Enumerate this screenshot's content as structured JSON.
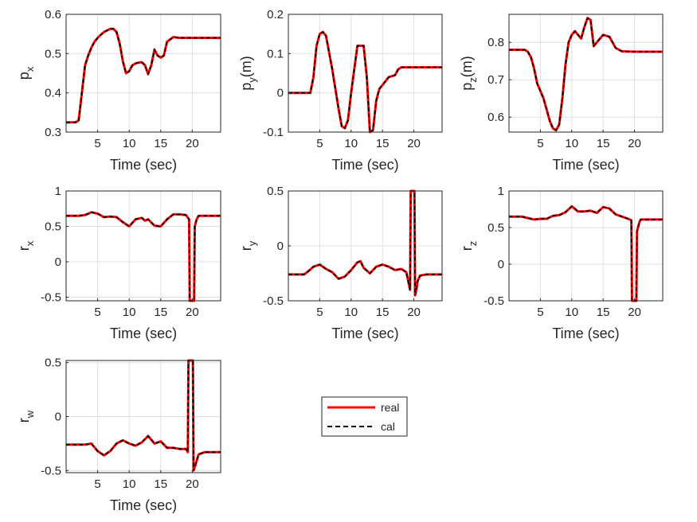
{
  "chart_data": [
    {
      "type": "line",
      "id": "px",
      "ylabel": {
        "base": "p",
        "sub": "x",
        "suffix": ""
      },
      "xlabel": "Time (sec)",
      "xlim": [
        0,
        24.5
      ],
      "ylim": [
        0.3,
        0.6
      ],
      "xticks": [
        5,
        10,
        15,
        20
      ],
      "yticks": [
        0.3,
        0.4,
        0.5,
        0.6
      ],
      "ytick_labels": [
        "0.3",
        "0.4",
        "0.5",
        "0.6"
      ],
      "series": [
        {
          "name": "real",
          "x": [
            0,
            1.5,
            2,
            2.5,
            3,
            3.5,
            4,
            4.5,
            5,
            5.5,
            6,
            7,
            7.5,
            8,
            8.5,
            9,
            9.5,
            10,
            10.5,
            11,
            11.5,
            12,
            12.5,
            13,
            13.5,
            14,
            14.5,
            15,
            15.5,
            16,
            17,
            18,
            20,
            24.5
          ],
          "y": [
            0.325,
            0.325,
            0.33,
            0.4,
            0.47,
            0.495,
            0.515,
            0.53,
            0.54,
            0.548,
            0.555,
            0.563,
            0.563,
            0.555,
            0.525,
            0.48,
            0.45,
            0.455,
            0.47,
            0.475,
            0.477,
            0.478,
            0.47,
            0.448,
            0.47,
            0.51,
            0.495,
            0.49,
            0.495,
            0.53,
            0.542,
            0.54,
            0.54,
            0.54
          ]
        }
      ]
    },
    {
      "type": "line",
      "id": "py",
      "ylabel": {
        "base": "p",
        "sub": "y",
        "suffix": "(m)"
      },
      "xlabel": "Time (sec)",
      "xlim": [
        0,
        24.5
      ],
      "ylim": [
        -0.1,
        0.2
      ],
      "xticks": [
        5,
        10,
        15,
        20
      ],
      "yticks": [
        -0.1,
        0,
        0.1,
        0.2
      ],
      "ytick_labels": [
        "-0.1",
        "0",
        "0.1",
        "0.2"
      ],
      "series": [
        {
          "name": "real",
          "x": [
            0,
            2,
            3,
            3.5,
            4,
            4.5,
            5,
            5.5,
            6,
            7,
            8,
            8.5,
            9,
            9.5,
            10,
            11,
            12,
            12.5,
            13,
            13.5,
            14,
            14.5,
            15,
            16,
            17,
            17.5,
            18,
            20,
            24.5
          ],
          "y": [
            0,
            0,
            0,
            0,
            0.04,
            0.12,
            0.15,
            0.155,
            0.145,
            0.06,
            -0.04,
            -0.085,
            -0.09,
            -0.07,
            0,
            0.12,
            0.12,
            0.04,
            -0.1,
            -0.095,
            -0.02,
            0.01,
            0.02,
            0.04,
            0.045,
            0.06,
            0.065,
            0.065,
            0.065
          ]
        }
      ]
    },
    {
      "type": "line",
      "id": "pz",
      "ylabel": {
        "base": "p",
        "sub": "z",
        "suffix": "(m)"
      },
      "xlabel": "Time (sec)",
      "xlim": [
        0,
        24.5
      ],
      "ylim": [
        0.56,
        0.875
      ],
      "xticks": [
        5,
        10,
        15,
        20
      ],
      "yticks": [
        0.6,
        0.7,
        0.8
      ],
      "ytick_labels": [
        "0.6",
        "0.7",
        "0.8"
      ],
      "series": [
        {
          "name": "real",
          "x": [
            0,
            2.5,
            3,
            3.5,
            4,
            4.5,
            5,
            5.5,
            6,
            6.5,
            7,
            7.5,
            8,
            8.5,
            9,
            9.5,
            10,
            10.5,
            11,
            11.5,
            12,
            12.5,
            13,
            13.5,
            14,
            14.5,
            15,
            16,
            16.5,
            17,
            18,
            20,
            24.5
          ],
          "y": [
            0.78,
            0.78,
            0.775,
            0.76,
            0.73,
            0.69,
            0.67,
            0.65,
            0.62,
            0.59,
            0.57,
            0.565,
            0.58,
            0.65,
            0.74,
            0.8,
            0.82,
            0.83,
            0.82,
            0.81,
            0.84,
            0.865,
            0.86,
            0.79,
            0.8,
            0.81,
            0.82,
            0.815,
            0.8,
            0.785,
            0.776,
            0.775,
            0.775
          ]
        }
      ]
    },
    {
      "type": "line",
      "id": "rx",
      "ylabel": {
        "base": "r",
        "sub": "x",
        "suffix": ""
      },
      "xlabel": "Time (sec)",
      "xlim": [
        0,
        24.5
      ],
      "ylim": [
        -0.55,
        1.0
      ],
      "xticks": [
        5,
        10,
        15,
        20
      ],
      "yticks": [
        -0.5,
        0,
        0.5,
        1
      ],
      "ytick_labels": [
        "-0.5",
        "0",
        "0.5",
        "1"
      ],
      "series": [
        {
          "name": "real",
          "x": [
            0,
            2,
            3,
            4,
            5,
            6,
            7,
            8,
            9,
            10,
            11,
            12,
            12.5,
            13,
            14,
            15,
            16,
            17,
            18,
            19,
            19.5,
            19.6,
            20.3,
            20.4,
            20.7,
            21,
            22,
            24.5
          ],
          "y": [
            0.65,
            0.65,
            0.66,
            0.7,
            0.68,
            0.63,
            0.64,
            0.63,
            0.56,
            0.5,
            0.6,
            0.62,
            0.58,
            0.6,
            0.51,
            0.5,
            0.6,
            0.67,
            0.67,
            0.66,
            0.6,
            -0.55,
            -0.55,
            0.5,
            0.6,
            0.65,
            0.65,
            0.65
          ]
        }
      ]
    },
    {
      "type": "line",
      "id": "ry",
      "ylabel": {
        "base": "r",
        "sub": "y",
        "suffix": ""
      },
      "xlabel": "Time (sec)",
      "xlim": [
        0,
        24.5
      ],
      "ylim": [
        -0.5,
        0.5
      ],
      "xticks": [
        5,
        10,
        15,
        20
      ],
      "yticks": [
        -0.5,
        0,
        0.5
      ],
      "ytick_labels": [
        "-0.5",
        "0",
        "0.5"
      ],
      "series": [
        {
          "name": "real",
          "x": [
            0,
            2.5,
            3,
            4,
            5,
            6,
            7,
            8,
            9,
            10,
            11,
            11.5,
            12,
            13,
            14,
            15,
            16,
            17,
            18,
            18.8,
            19.4,
            19.5,
            20.1,
            20.2,
            20.4,
            20.6,
            21,
            22,
            24.5
          ],
          "y": [
            -0.26,
            -0.26,
            -0.24,
            -0.19,
            -0.17,
            -0.21,
            -0.24,
            -0.3,
            -0.28,
            -0.22,
            -0.15,
            -0.14,
            -0.2,
            -0.25,
            -0.19,
            -0.17,
            -0.19,
            -0.22,
            -0.21,
            -0.24,
            -0.4,
            0.5,
            0.5,
            -0.45,
            -0.4,
            -0.32,
            -0.27,
            -0.26,
            -0.26
          ]
        }
      ]
    },
    {
      "type": "line",
      "id": "rz",
      "ylabel": {
        "base": "r",
        "sub": "z",
        "suffix": ""
      },
      "xlabel": "Time (sec)",
      "xlim": [
        0,
        24.5
      ],
      "ylim": [
        -0.5,
        1.0
      ],
      "xticks": [
        5,
        10,
        15,
        20
      ],
      "yticks": [
        -0.5,
        0,
        0.5,
        1
      ],
      "ytick_labels": [
        "-0.5",
        "0",
        "0.5",
        "1"
      ],
      "series": [
        {
          "name": "real",
          "x": [
            0,
            2,
            3,
            4,
            5,
            6,
            7,
            8,
            9,
            10,
            11,
            12,
            13,
            14,
            15,
            16,
            17,
            18,
            19,
            19.5,
            19.6,
            20.3,
            20.4,
            20.8,
            21,
            22,
            24.5
          ],
          "y": [
            0.65,
            0.65,
            0.63,
            0.61,
            0.62,
            0.62,
            0.66,
            0.67,
            0.71,
            0.79,
            0.72,
            0.72,
            0.73,
            0.7,
            0.78,
            0.76,
            0.68,
            0.65,
            0.62,
            0.6,
            -0.5,
            -0.5,
            0.45,
            0.58,
            0.61,
            0.61,
            0.61
          ]
        }
      ]
    },
    {
      "type": "line",
      "id": "rw",
      "ylabel": {
        "base": "r",
        "sub": "w",
        "suffix": ""
      },
      "xlabel": "Time (sec)",
      "xlim": [
        0,
        24.5
      ],
      "ylim": [
        -0.52,
        0.52
      ],
      "xticks": [
        5,
        10,
        15,
        20
      ],
      "yticks": [
        -0.5,
        0,
        0.5
      ],
      "ytick_labels": [
        "-0.5",
        "0",
        "0.5"
      ],
      "series": [
        {
          "name": "real",
          "x": [
            0,
            2,
            3,
            4,
            5,
            6,
            7,
            8,
            9,
            10,
            11,
            12,
            13,
            14,
            15,
            16,
            17,
            18,
            19,
            19.3,
            19.4,
            20.1,
            20.2,
            20.5,
            21,
            22,
            24.5
          ],
          "y": [
            -0.26,
            -0.26,
            -0.26,
            -0.25,
            -0.32,
            -0.36,
            -0.32,
            -0.25,
            -0.22,
            -0.25,
            -0.27,
            -0.24,
            -0.18,
            -0.25,
            -0.23,
            -0.29,
            -0.29,
            -0.3,
            -0.3,
            -0.33,
            0.52,
            0.52,
            -0.5,
            -0.45,
            -0.35,
            -0.33,
            -0.33
          ]
        }
      ]
    }
  ],
  "legend": {
    "entries": [
      {
        "label": "real",
        "color": "#ff0000",
        "style": "solid"
      },
      {
        "label": "cal",
        "color": "#000000",
        "style": "dashed"
      }
    ]
  },
  "colors": {
    "real": "#ff0000",
    "cal": "#000000",
    "grid": "#dfdfdf",
    "axis": "#262626"
  }
}
